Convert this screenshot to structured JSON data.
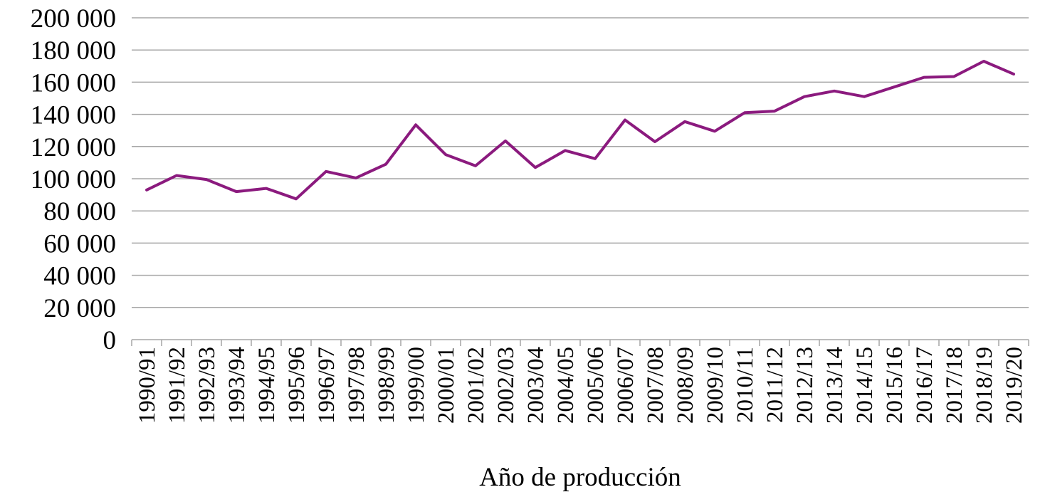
{
  "chart_data": {
    "type": "line",
    "title": "",
    "xlabel": "Año de producción",
    "ylabel": "",
    "ylim": [
      0,
      200000
    ],
    "y_ticks": [
      0,
      20000,
      40000,
      60000,
      80000,
      100000,
      120000,
      140000,
      160000,
      180000,
      200000
    ],
    "y_tick_labels": [
      "0",
      "20 000",
      "40 000",
      "60 000",
      "80 000",
      "100 000",
      "120 000",
      "140 000",
      "160 000",
      "180 000",
      "200 000"
    ],
    "grid": "horizontal",
    "legend": "none",
    "categories": [
      "1990/91",
      "1991/92",
      "1992/93",
      "1993/94",
      "1994/95",
      "1995/96",
      "1996/97",
      "1997/98",
      "1998/99",
      "1999/00",
      "2000/01",
      "2001/02",
      "2002/03",
      "2003/04",
      "2004/05",
      "2005/06",
      "2006/07",
      "2007/08",
      "2008/09",
      "2009/10",
      "2010/11",
      "2011/12",
      "2012/13",
      "2013/14",
      "2014/15",
      "2015/16",
      "2016/17",
      "2017/18",
      "2018/19",
      "2019/20"
    ],
    "series": [
      {
        "color": "#8b1a7e",
        "values": [
          93000,
          102000,
          99500,
          92000,
          94000,
          87500,
          104500,
          100500,
          109000,
          133500,
          115000,
          108000,
          123500,
          107000,
          117500,
          112500,
          136500,
          123000,
          135500,
          129500,
          141000,
          142000,
          151000,
          154500,
          151000,
          157000,
          163000,
          163500,
          173000,
          165000
        ]
      }
    ]
  }
}
